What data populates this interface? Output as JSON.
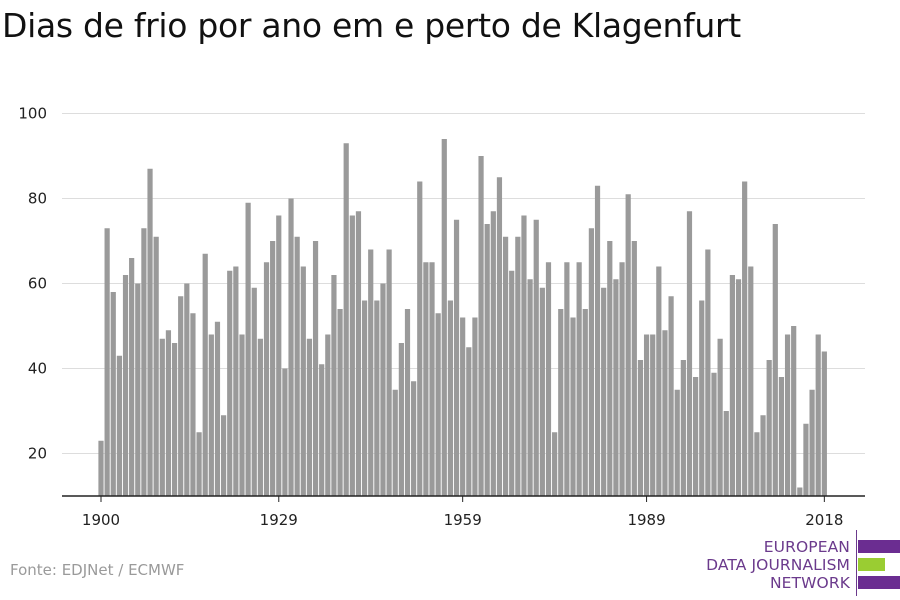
{
  "title": "Dias de frio por ano em e perto de Klagenfurt",
  "source": "Fonte: EDJNet / ECMWF",
  "logo": {
    "lines": [
      "EUROPEAN",
      "DATA JOURNALISM",
      "NETWORK"
    ],
    "colors": {
      "text": "#6b3a8c",
      "bar": "#6b2d91",
      "accent": "#9acd32"
    }
  },
  "colors": {
    "bar": "#9a9a9a",
    "grid": "#dddddd",
    "axis": "#222222"
  },
  "chart_data": {
    "type": "bar",
    "title": "Dias de frio por ano em e perto de Klagenfurt",
    "xlabel": "",
    "ylabel": "",
    "ylim": [
      10,
      100
    ],
    "yticks": [
      20,
      40,
      60,
      80,
      100
    ],
    "xticks": [
      1900,
      1929,
      1959,
      1989,
      2018
    ],
    "grid": true,
    "x": [
      1900,
      1901,
      1902,
      1903,
      1904,
      1905,
      1906,
      1907,
      1908,
      1909,
      1910,
      1911,
      1912,
      1913,
      1914,
      1915,
      1916,
      1917,
      1918,
      1919,
      1920,
      1921,
      1922,
      1923,
      1924,
      1925,
      1926,
      1927,
      1928,
      1929,
      1930,
      1931,
      1932,
      1933,
      1934,
      1935,
      1936,
      1937,
      1938,
      1939,
      1940,
      1941,
      1942,
      1943,
      1944,
      1945,
      1946,
      1947,
      1948,
      1949,
      1950,
      1951,
      1952,
      1953,
      1954,
      1955,
      1956,
      1957,
      1958,
      1959,
      1960,
      1961,
      1962,
      1963,
      1964,
      1965,
      1966,
      1967,
      1968,
      1969,
      1970,
      1971,
      1972,
      1973,
      1974,
      1975,
      1976,
      1977,
      1978,
      1979,
      1980,
      1981,
      1982,
      1983,
      1984,
      1985,
      1986,
      1987,
      1988,
      1989,
      1990,
      1991,
      1992,
      1993,
      1994,
      1995,
      1996,
      1997,
      1998,
      1999,
      2000,
      2001,
      2002,
      2003,
      2004,
      2005,
      2006,
      2007,
      2008,
      2009,
      2010,
      2011,
      2012,
      2013,
      2014,
      2015,
      2016,
      2017,
      2018
    ],
    "values": [
      23,
      73,
      58,
      43,
      62,
      66,
      60,
      73,
      87,
      71,
      47,
      49,
      46,
      57,
      60,
      53,
      25,
      67,
      48,
      51,
      29,
      63,
      64,
      48,
      79,
      59,
      47,
      65,
      70,
      76,
      40,
      80,
      71,
      64,
      47,
      70,
      41,
      48,
      62,
      54,
      93,
      76,
      77,
      56,
      68,
      56,
      60,
      68,
      35,
      46,
      54,
      37,
      84,
      65,
      65,
      53,
      94,
      56,
      75,
      52,
      45,
      52,
      90,
      74,
      77,
      85,
      71,
      63,
      71,
      76,
      61,
      75,
      59,
      65,
      25,
      54,
      65,
      52,
      65,
      54,
      73,
      83,
      59,
      70,
      61,
      65,
      81,
      70,
      42,
      48,
      48,
      64,
      49,
      57,
      35,
      42,
      77,
      38,
      56,
      68,
      39,
      47,
      30,
      62,
      61,
      84,
      64,
      25,
      29,
      42,
      74,
      38,
      48,
      50,
      12,
      27,
      35,
      48,
      44
    ]
  }
}
